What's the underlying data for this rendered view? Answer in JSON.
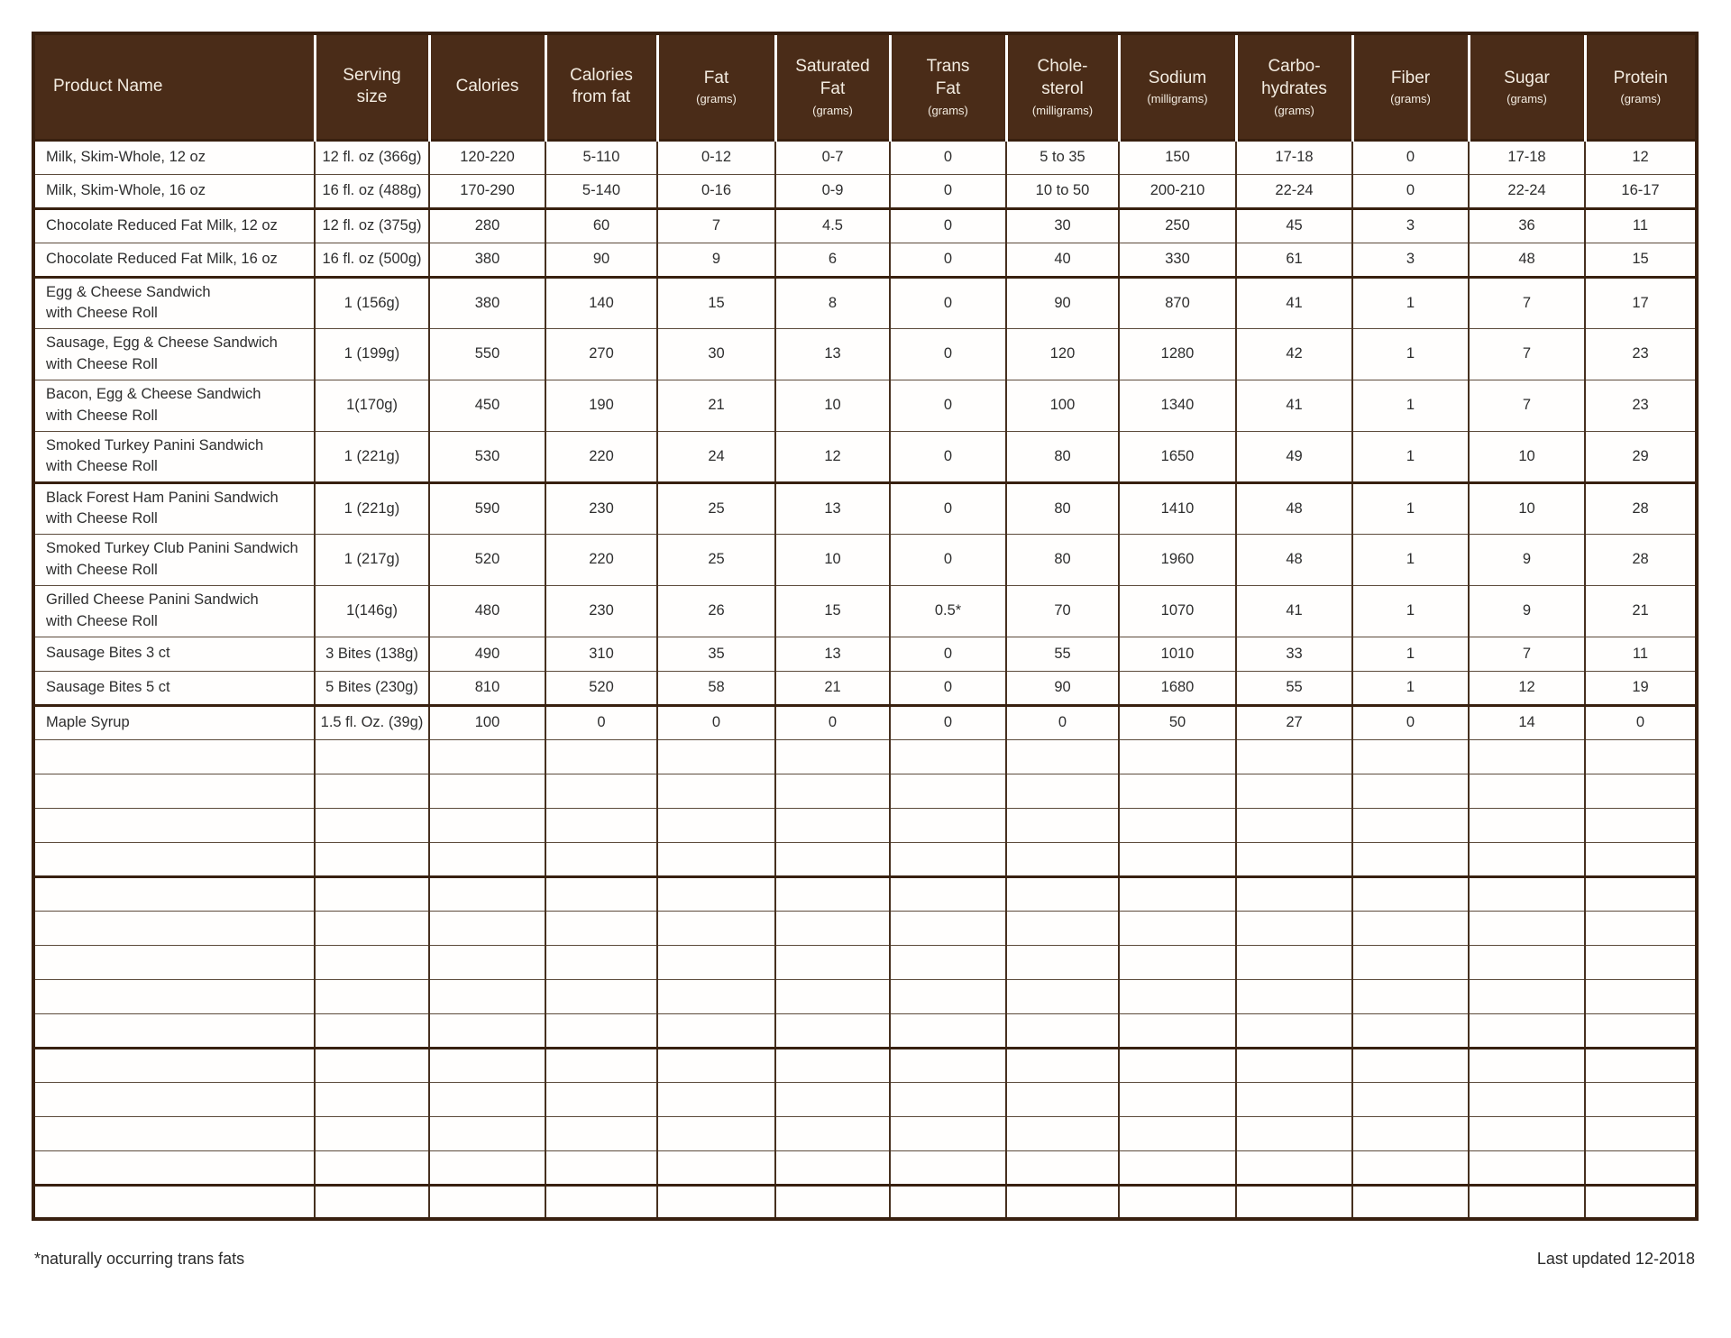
{
  "table": {
    "columns": [
      {
        "label": "Product Name",
        "unit": ""
      },
      {
        "label": "Serving\nsize",
        "unit": ""
      },
      {
        "label": "Calories",
        "unit": ""
      },
      {
        "label": "Calories\nfrom fat",
        "unit": ""
      },
      {
        "label": "Fat",
        "unit": "(grams)"
      },
      {
        "label": "Saturated\nFat",
        "unit": "(grams)"
      },
      {
        "label": "Trans\nFat",
        "unit": "(grams)"
      },
      {
        "label": "Chole-\nsterol",
        "unit": "(milligrams)"
      },
      {
        "label": "Sodium",
        "unit": "(milligrams)"
      },
      {
        "label": "Carbo-\nhydrates",
        "unit": "(grams)"
      },
      {
        "label": "Fiber",
        "unit": "(grams)"
      },
      {
        "label": "Sugar",
        "unit": "(grams)"
      },
      {
        "label": "Protein",
        "unit": "(grams)"
      }
    ],
    "rows": [
      [
        "Milk, Skim-Whole, 12 oz",
        "12 fl. oz (366g)",
        "120-220",
        "5-110",
        "0-12",
        "0-7",
        "0",
        "5 to 35",
        "150",
        "17-18",
        "0",
        "17-18",
        "12"
      ],
      [
        "Milk, Skim-Whole, 16 oz",
        "16 fl. oz (488g)",
        "170-290",
        "5-140",
        "0-16",
        "0-9",
        "0",
        "10 to 50",
        "200-210",
        "22-24",
        "0",
        "22-24",
        "16-17"
      ],
      [
        "Chocolate Reduced Fat Milk, 12 oz",
        "12 fl. oz (375g)",
        "280",
        "60",
        "7",
        "4.5",
        "0",
        "30",
        "250",
        "45",
        "3",
        "36",
        "11"
      ],
      [
        "Chocolate Reduced Fat Milk, 16 oz",
        "16 fl. oz (500g)",
        "380",
        "90",
        "9",
        "6",
        "0",
        "40",
        "330",
        "61",
        "3",
        "48",
        "15"
      ],
      [
        "Egg & Cheese Sandwich\nwith Cheese Roll",
        "1 (156g)",
        "380",
        "140",
        "15",
        "8",
        "0",
        "90",
        "870",
        "41",
        "1",
        "7",
        "17"
      ],
      [
        "Sausage, Egg & Cheese Sandwich\nwith Cheese Roll",
        "1 (199g)",
        "550",
        "270",
        "30",
        "13",
        "0",
        "120",
        "1280",
        "42",
        "1",
        "7",
        "23"
      ],
      [
        "Bacon, Egg & Cheese Sandwich\nwith Cheese Roll",
        "1(170g)",
        "450",
        "190",
        "21",
        "10",
        "0",
        "100",
        "1340",
        "41",
        "1",
        "7",
        "23"
      ],
      [
        "Smoked Turkey Panini Sandwich\nwith Cheese Roll",
        "1 (221g)",
        "530",
        "220",
        "24",
        "12",
        "0",
        "80",
        "1650",
        "49",
        "1",
        "10",
        "29"
      ],
      [
        "Black Forest Ham Panini Sandwich\nwith Cheese Roll",
        "1 (221g)",
        "590",
        "230",
        "25",
        "13",
        "0",
        "80",
        "1410",
        "48",
        "1",
        "10",
        "28"
      ],
      [
        "Smoked Turkey Club Panini Sandwich\nwith Cheese Roll",
        "1 (217g)",
        "520",
        "220",
        "25",
        "10",
        "0",
        "80",
        "1960",
        "48",
        "1",
        "9",
        "28"
      ],
      [
        "Grilled Cheese Panini Sandwich\nwith Cheese Roll",
        "1(146g)",
        "480",
        "230",
        "26",
        "15",
        "0.5*",
        "70",
        "1070",
        "41",
        "1",
        "9",
        "21"
      ],
      [
        "Sausage Bites 3 ct",
        "3 Bites (138g)",
        "490",
        "310",
        "35",
        "13",
        "0",
        "55",
        "1010",
        "33",
        "1",
        "7",
        "11"
      ],
      [
        "Sausage Bites 5 ct",
        "5 Bites (230g)",
        "810",
        "520",
        "58",
        "21",
        "0",
        "90",
        "1680",
        "55",
        "1",
        "12",
        "19"
      ],
      [
        "Maple Syrup",
        "1.5 fl. Oz. (39g)",
        "100",
        "0",
        "0",
        "0",
        "0",
        "0",
        "50",
        "27",
        "0",
        "14",
        "0"
      ]
    ],
    "thick_after_rows": [
      2,
      4,
      8,
      13
    ],
    "empty_sections": [
      4,
      5,
      4,
      1
    ],
    "footnote": "*naturally occurring trans fats",
    "last_updated": "Last updated 12-2018"
  },
  "colors": {
    "header_bg": "#4a2c18",
    "header_text": "#f3ece1",
    "border_dark": "#38200f",
    "border_thin": "#5c4a3a"
  }
}
